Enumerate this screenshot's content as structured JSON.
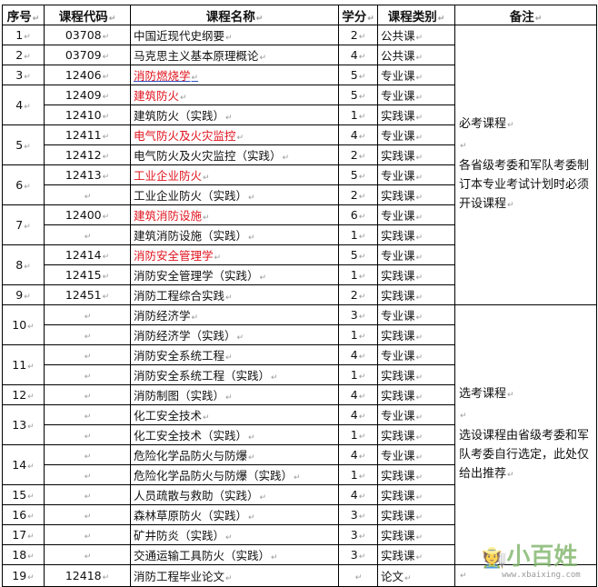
{
  "headers": [
    "序号",
    "课程代码",
    "课程名称",
    "学分",
    "课程类别",
    "备注"
  ],
  "groups": [
    {
      "seq": "1",
      "courses": [
        {
          "code": "03708",
          "name": "中国近现代史纲要",
          "credit": "2",
          "type": "公共课"
        }
      ]
    },
    {
      "seq": "2",
      "courses": [
        {
          "code": "03709",
          "name": "马克思主义基本原理概论",
          "credit": "4",
          "type": "公共课"
        }
      ]
    },
    {
      "seq": "3",
      "courses": [
        {
          "code": "12406",
          "name": "消防燃烧学",
          "credit": "5",
          "type": "专业课",
          "red": true,
          "underline": true
        }
      ]
    },
    {
      "seq": "4",
      "courses": [
        {
          "code": "12409",
          "name": "建筑防火",
          "credit": "5",
          "type": "专业课",
          "red": true
        },
        {
          "code": "12410",
          "name": "建筑防火（实践）",
          "credit": "1",
          "type": "实践课"
        }
      ]
    },
    {
      "seq": "5",
      "courses": [
        {
          "code": "12411",
          "name": "电气防火及火灾监控",
          "credit": "4",
          "type": "专业课",
          "red": true
        },
        {
          "code": "12412",
          "name": "电气防火及火灾监控（实践）",
          "credit": "2",
          "type": "实践课"
        }
      ]
    },
    {
      "seq": "6",
      "courses": [
        {
          "code": "12413",
          "name": "工业企业防火",
          "credit": "5",
          "type": "专业课",
          "red": true
        },
        {
          "code": "",
          "name": "工业企业防火（实践）",
          "credit": "2",
          "type": "实践课"
        }
      ]
    },
    {
      "seq": "7",
      "courses": [
        {
          "code": "12400",
          "name": "建筑消防设施",
          "credit": "6",
          "type": "专业课",
          "red": true
        },
        {
          "code": "",
          "name": "建筑消防设施（实践）",
          "credit": "1",
          "type": "实践课"
        }
      ]
    },
    {
      "seq": "8",
      "courses": [
        {
          "code": "12414",
          "name": "消防安全管理学",
          "credit": "5",
          "type": "专业课",
          "red": true
        },
        {
          "code": "12415",
          "name": "消防安全管理学（实践）",
          "credit": "1",
          "type": "实践课"
        }
      ]
    },
    {
      "seq": "9",
      "courses": [
        {
          "code": "12451",
          "name": "消防工程综合实践",
          "credit": "2",
          "type": "实践课"
        }
      ]
    },
    {
      "seq": "10",
      "courses": [
        {
          "code": "",
          "name": "消防经济学",
          "credit": "3",
          "type": "专业课"
        },
        {
          "code": "",
          "name": "消防经济学（实践）",
          "credit": "1",
          "type": "实践课"
        }
      ]
    },
    {
      "seq": "11",
      "courses": [
        {
          "code": "",
          "name": "消防安全系统工程",
          "credit": "4",
          "type": "专业课"
        },
        {
          "code": "",
          "name": "消防安全系统工程（实践）",
          "credit": "1",
          "type": "实践课"
        }
      ]
    },
    {
      "seq": "12",
      "courses": [
        {
          "code": "",
          "name": "消防制图（实践）",
          "credit": "4",
          "type": "实践课"
        }
      ]
    },
    {
      "seq": "13",
      "courses": [
        {
          "code": "",
          "name": "化工安全技术",
          "credit": "4",
          "type": "专业课"
        },
        {
          "code": "",
          "name": "化工安全技术（实践）",
          "credit": "1",
          "type": "实践课"
        }
      ]
    },
    {
      "seq": "14",
      "courses": [
        {
          "code": "",
          "name": "危险化学品防火与防爆",
          "credit": "4",
          "type": "专业课"
        },
        {
          "code": "",
          "name": "危险化学品防火与防爆（实践）",
          "credit": "1",
          "type": "实践课"
        }
      ]
    },
    {
      "seq": "15",
      "courses": [
        {
          "code": "",
          "name": "人员疏散与救助（实践）",
          "credit": "4",
          "type": "实践课"
        }
      ]
    },
    {
      "seq": "16",
      "courses": [
        {
          "code": "",
          "name": "森林草原防火（实践）",
          "credit": "3",
          "type": "实践课"
        }
      ]
    },
    {
      "seq": "17",
      "courses": [
        {
          "code": "",
          "name": "矿井防炎（实践）",
          "credit": "3",
          "type": "实践课"
        }
      ]
    },
    {
      "seq": "18",
      "courses": [
        {
          "code": "",
          "name": "交通运输工具防火（实践）",
          "credit": "3",
          "type": "实践课"
        }
      ]
    },
    {
      "seq": "19",
      "courses": [
        {
          "code": "12418",
          "name": "消防工程毕业论文",
          "credit": "",
          "type": "论文"
        }
      ]
    }
  ],
  "notes": [
    {
      "from_group": 0,
      "to_group": 8,
      "title": "必考课程",
      "text": "各省级考委和军队考委制订本专业考试计划时必须开设课程"
    },
    {
      "from_group": 9,
      "to_group": 17,
      "title": "选考课程",
      "text": "选设课程由省级考委和军队考委自行选定，此处仅给出推荐"
    },
    {
      "from_group": 18,
      "to_group": 18,
      "title": "",
      "text": ""
    }
  ],
  "watermark": {
    "logo": "小百姓",
    "url": "www.xbaixing.com"
  }
}
